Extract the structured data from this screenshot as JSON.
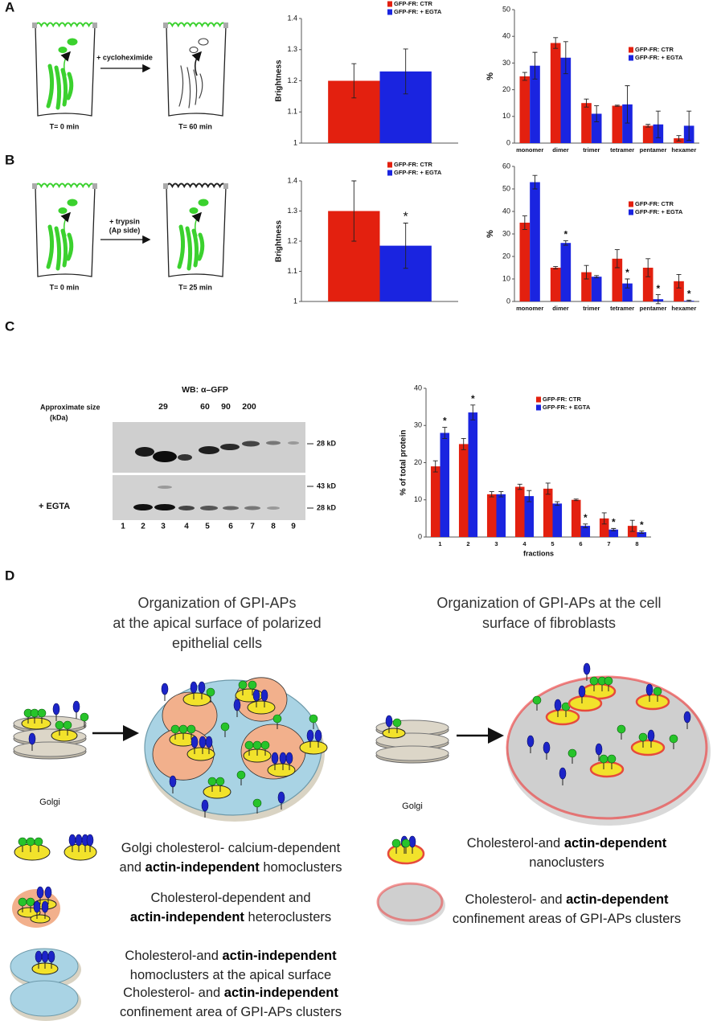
{
  "chart_data": [
    {
      "type": "bar",
      "ylabel": "Brightness",
      "categories": [
        null
      ],
      "ylim": [
        1,
        1.4
      ],
      "yticks": [
        1,
        1.1,
        1.2,
        1.3,
        1.4
      ],
      "series": [
        {
          "name": "GFP-FR: CTR",
          "color": "#e3200f",
          "values": [
            1.2
          ],
          "errors": [
            0.055
          ]
        },
        {
          "name": "GFP-FR: + EGTA",
          "color": "#1a24e0",
          "values": [
            1.23
          ],
          "errors": [
            0.072
          ]
        }
      ]
    },
    {
      "type": "bar",
      "ylabel": "%",
      "categories": [
        "monomer",
        "dimer",
        "trimer",
        "tetramer",
        "pentamer",
        "hexamer"
      ],
      "ylim": [
        0,
        50
      ],
      "yticks": [
        0,
        10,
        20,
        30,
        40,
        50
      ],
      "series": [
        {
          "name": "GFP-FR: CTR",
          "color": "#e3200f",
          "values": [
            25,
            37.5,
            15,
            14,
            6.5,
            1.8
          ],
          "errors": [
            1.5,
            2,
            1.5,
            0.2,
            0.5,
            1
          ]
        },
        {
          "name": "GFP-FR: + EGTA",
          "color": "#1a24e0",
          "values": [
            29,
            32,
            11,
            14.5,
            7,
            6.5
          ],
          "errors": [
            5,
            6,
            3,
            7,
            5,
            5.5
          ]
        }
      ]
    },
    {
      "type": "bar",
      "ylabel": "Brightness",
      "categories": [
        null
      ],
      "ylim": [
        1,
        1.4
      ],
      "yticks": [
        1,
        1.1,
        1.2,
        1.3,
        1.4
      ],
      "series": [
        {
          "name": "GFP-FR: CTR",
          "color": "#e3200f",
          "values": [
            1.3
          ],
          "errors": [
            0.1
          ]
        },
        {
          "name": "GFP-FR: + EGTA",
          "color": "#1a24e0",
          "values": [
            1.185
          ],
          "errors": [
            0.075
          ],
          "significance": [
            "*"
          ]
        }
      ]
    },
    {
      "type": "bar",
      "ylabel": "%",
      "categories": [
        "monomer",
        "dimer",
        "trimer",
        "tetramer",
        "pentamer",
        "hexamer"
      ],
      "ylim": [
        0,
        60
      ],
      "yticks": [
        0,
        10,
        20,
        30,
        40,
        50,
        60
      ],
      "series": [
        {
          "name": "GFP-FR: CTR",
          "color": "#e3200f",
          "values": [
            35,
            15,
            13,
            19,
            15,
            9
          ],
          "errors": [
            3,
            0.5,
            3,
            4,
            4,
            3
          ]
        },
        {
          "name": "GFP-FR: + EGTA",
          "color": "#1a24e0",
          "values": [
            53,
            26,
            11,
            8,
            1,
            0.3
          ],
          "errors": [
            3,
            1,
            0.5,
            2,
            2,
            0.3
          ],
          "significance": [
            null,
            "*",
            null,
            "*",
            "*",
            "*"
          ]
        }
      ]
    },
    {
      "type": "bar",
      "ylabel": "% of total protein",
      "xlabel": "fractions",
      "categories": [
        "1",
        "2",
        "3",
        "4",
        "5",
        "6",
        "7",
        "8"
      ],
      "ylim": [
        0,
        40
      ],
      "yticks": [
        0,
        10,
        20,
        30,
        40
      ],
      "series": [
        {
          "name": "GFP-FR: CTR",
          "color": "#e3200f",
          "values": [
            19,
            25,
            11.5,
            13.5,
            13,
            10,
            5,
            3
          ],
          "errors": [
            1.5,
            1.5,
            0.7,
            0.7,
            1.5,
            0.2,
            1.5,
            1.5
          ]
        },
        {
          "name": "GFP-FR: + EGTA",
          "color": "#1a24e0",
          "values": [
            28,
            33.5,
            11.5,
            11,
            9,
            3,
            2,
            1.3
          ],
          "errors": [
            1.5,
            2,
            0.7,
            1.5,
            0.5,
            0.5,
            0.3,
            0.3
          ],
          "significance": [
            "*",
            "*",
            null,
            null,
            null,
            "*",
            "*",
            "*"
          ]
        }
      ]
    }
  ],
  "panel_labels": [
    "A",
    "B",
    "C",
    "D"
  ],
  "diagram_a": {
    "treatment": "+ cycloheximide",
    "time_start": "T= 0 min",
    "time_end": "T= 60 min"
  },
  "diagram_b": {
    "treatment": [
      "+ trypsin",
      "(Ap side)"
    ],
    "time_start": "T= 0 min",
    "time_end": "T= 25 min"
  },
  "blot": {
    "title": "WB: α–GFP",
    "size_label": [
      "Approximate size",
      "(kDa)"
    ],
    "sizes": [
      "29",
      "60",
      "90",
      "200"
    ],
    "markers": [
      "28 kD",
      "43 kD",
      "28 kD"
    ],
    "treatment": "+ EGTA",
    "lanes": [
      "1",
      "2",
      "3",
      "4",
      "5",
      "6",
      "7",
      "8",
      "9"
    ]
  },
  "panel_d": {
    "heading_left": [
      "Organization of GPI-APs",
      "at the apical surface of polarized",
      "epithelial cells"
    ],
    "heading_right": [
      "Organization of GPI-APs at the cell",
      "surface of fibroblasts"
    ],
    "golgi_labels": [
      "Golgi",
      "Golgi"
    ],
    "legend_left": [
      [
        [
          {
            "text": "Golgi cholesterol- calcium-dependent"
          }
        ],
        [
          {
            "text": "and "
          },
          {
            "text": "actin-independent",
            "bold": true
          },
          {
            "text": " homoclusters"
          }
        ]
      ],
      [
        [
          {
            "text": "Cholesterol-dependent and"
          }
        ],
        [
          {
            "text": "actin-independent",
            "bold": true
          },
          {
            "text": " heteroclusters"
          }
        ]
      ],
      [
        [
          {
            "text": "Cholesterol-and "
          },
          {
            "text": "actin-independent",
            "bold": true
          }
        ],
        [
          {
            "text": "homoclusters at the apical surface"
          }
        ]
      ],
      [
        [
          {
            "text": "Cholesterol- and "
          },
          {
            "text": "actin-independent",
            "bold": true
          }
        ],
        [
          {
            "text": "confinement area of GPI-APs clusters"
          }
        ]
      ]
    ],
    "legend_right": [
      [
        [
          {
            "text": "Cholesterol-and "
          },
          {
            "text": "actin-dependent",
            "bold": true
          }
        ],
        [
          {
            "text": "nanoclusters"
          }
        ]
      ],
      [
        [
          {
            "text": "Cholesterol- and "
          },
          {
            "text": "actin-dependent",
            "bold": true
          }
        ],
        [
          {
            "text": "confinement areas of GPI-APs clusters"
          }
        ]
      ]
    ]
  }
}
